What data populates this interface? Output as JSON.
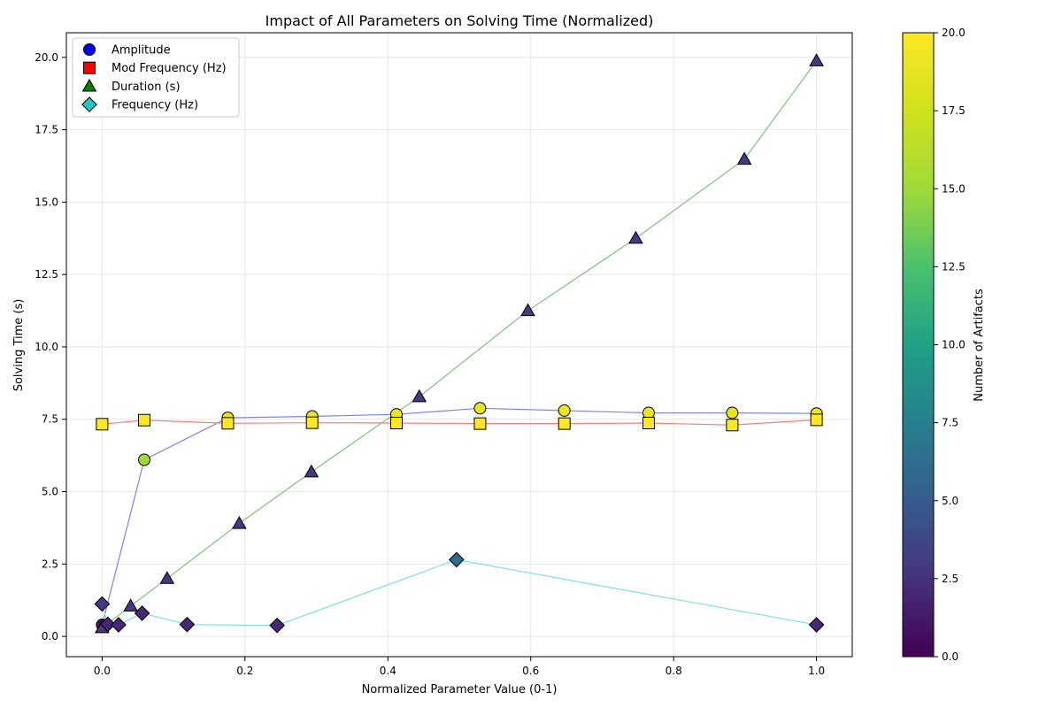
{
  "chart_data": {
    "type": "scatter",
    "title": "Impact of All Parameters on Solving Time (Normalized)",
    "xlabel": "Normalized Parameter Value (0-1)",
    "ylabel": "Solving Time (s)",
    "xlim": [
      -0.05,
      1.05
    ],
    "ylim": [
      -0.7,
      20.85
    ],
    "x_ticks": [
      0.0,
      0.2,
      0.4,
      0.6,
      0.8,
      1.0
    ],
    "x_tick_labels": [
      "0.0",
      "0.2",
      "0.4",
      "0.6",
      "0.8",
      "1.0"
    ],
    "y_ticks": [
      0.0,
      2.5,
      5.0,
      7.5,
      10.0,
      12.5,
      15.0,
      17.5,
      20.0
    ],
    "y_tick_labels": [
      "0.0",
      "2.5",
      "5.0",
      "7.5",
      "10.0",
      "12.5",
      "15.0",
      "17.5",
      "20.0"
    ],
    "grid": true,
    "legend_position": "top-left",
    "colorbar": {
      "label": "Number of Artifacts",
      "range": [
        0,
        20
      ],
      "ticks": [
        0.0,
        2.5,
        5.0,
        7.5,
        10.0,
        12.5,
        15.0,
        17.5,
        20.0
      ],
      "tick_labels": [
        "0.0",
        "2.5",
        "5.0",
        "7.5",
        "10.0",
        "12.5",
        "15.0",
        "17.5",
        "20.0"
      ],
      "colormap": "viridis"
    },
    "series": [
      {
        "name": "Amplitude",
        "marker": "circle",
        "legend_color": "#0000ff",
        "line_color": "#8080f0",
        "points": [
          {
            "x": 0.0,
            "y": 0.4,
            "artifacts": 1
          },
          {
            "x": 0.059,
            "y": 6.1,
            "artifacts": 15
          },
          {
            "x": 0.176,
            "y": 7.55,
            "artifacts": 19
          },
          {
            "x": 0.294,
            "y": 7.6,
            "artifacts": 19
          },
          {
            "x": 0.412,
            "y": 7.67,
            "artifacts": 19
          },
          {
            "x": 0.529,
            "y": 7.88,
            "artifacts": 19
          },
          {
            "x": 0.647,
            "y": 7.8,
            "artifacts": 19
          },
          {
            "x": 0.765,
            "y": 7.72,
            "artifacts": 19
          },
          {
            "x": 0.882,
            "y": 7.72,
            "artifacts": 19
          },
          {
            "x": 1.0,
            "y": 7.7,
            "artifacts": 19
          }
        ]
      },
      {
        "name": "Mod Frequency (Hz)",
        "marker": "square",
        "legend_color": "#ff0000",
        "line_color": "#f08080",
        "points": [
          {
            "x": 0.0,
            "y": 7.33,
            "artifacts": 20
          },
          {
            "x": 0.059,
            "y": 7.47,
            "artifacts": 20
          },
          {
            "x": 0.176,
            "y": 7.36,
            "artifacts": 20
          },
          {
            "x": 0.294,
            "y": 7.38,
            "artifacts": 20
          },
          {
            "x": 0.412,
            "y": 7.37,
            "artifacts": 20
          },
          {
            "x": 0.529,
            "y": 7.35,
            "artifacts": 20
          },
          {
            "x": 0.647,
            "y": 7.35,
            "artifacts": 20
          },
          {
            "x": 0.765,
            "y": 7.37,
            "artifacts": 20
          },
          {
            "x": 0.882,
            "y": 7.3,
            "artifacts": 20
          },
          {
            "x": 1.0,
            "y": 7.48,
            "artifacts": 20
          }
        ]
      },
      {
        "name": "Duration (s)",
        "marker": "triangle",
        "legend_color": "#008000",
        "line_color": "#80c080",
        "points": [
          {
            "x": 0.0,
            "y": 0.3,
            "artifacts": 3
          },
          {
            "x": 0.04,
            "y": 1.05,
            "artifacts": 3
          },
          {
            "x": 0.091,
            "y": 2.0,
            "artifacts": 3
          },
          {
            "x": 0.192,
            "y": 3.9,
            "artifacts": 3
          },
          {
            "x": 0.293,
            "y": 5.68,
            "artifacts": 3
          },
          {
            "x": 0.444,
            "y": 8.28,
            "artifacts": 3
          },
          {
            "x": 0.596,
            "y": 11.25,
            "artifacts": 3
          },
          {
            "x": 0.747,
            "y": 13.75,
            "artifacts": 3
          },
          {
            "x": 0.899,
            "y": 16.48,
            "artifacts": 3
          },
          {
            "x": 1.0,
            "y": 19.88,
            "artifacts": 3
          }
        ]
      },
      {
        "name": "Frequency (Hz)",
        "marker": "diamond",
        "legend_color": "#1fc8c8",
        "line_color": "#80e0e0",
        "points": [
          {
            "x": 0.0,
            "y": 1.12,
            "artifacts": 3
          },
          {
            "x": 0.008,
            "y": 0.42,
            "artifacts": 2
          },
          {
            "x": 0.023,
            "y": 0.4,
            "artifacts": 2
          },
          {
            "x": 0.056,
            "y": 0.8,
            "artifacts": 2
          },
          {
            "x": 0.119,
            "y": 0.41,
            "artifacts": 2
          },
          {
            "x": 0.245,
            "y": 0.38,
            "artifacts": 2
          },
          {
            "x": 0.496,
            "y": 2.65,
            "artifacts": 6
          },
          {
            "x": 1.0,
            "y": 0.4,
            "artifacts": 2
          }
        ]
      }
    ]
  }
}
